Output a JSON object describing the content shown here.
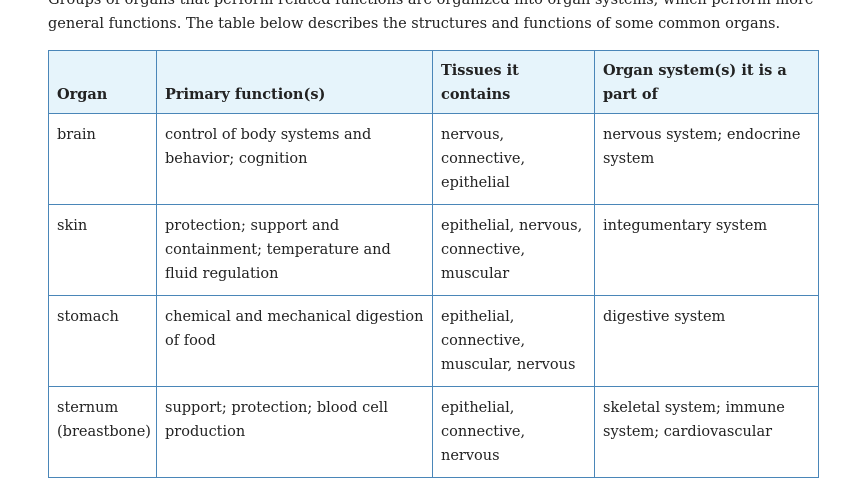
{
  "intro_text": "Groups of organs that perform related functions are organized into organ systems, which perform more general functions. The table below describes the structures and functions of some common organs.",
  "table": {
    "headers": [
      "Organ",
      "Primary function(s)",
      "Tissues it contains",
      "Organ system(s) it is a part of"
    ],
    "rows": [
      [
        "brain",
        "control of body systems and behavior; cognition",
        "nervous, connective, epithelial",
        "nervous system; endocrine system"
      ],
      [
        "skin",
        "protection; support and containment; temperature and fluid regulation",
        "epithelial, nervous, connective, muscular",
        "integumentary system"
      ],
      [
        "stomach",
        "chemical and mechanical digestion of food",
        "epithelial, connective, muscular, nervous",
        "digestive system"
      ],
      [
        "sternum (breastbone)",
        "support; protection; blood cell production",
        "epithelial, connective, nervous",
        "skeletal system; immune system; cardiovascular"
      ]
    ]
  }
}
